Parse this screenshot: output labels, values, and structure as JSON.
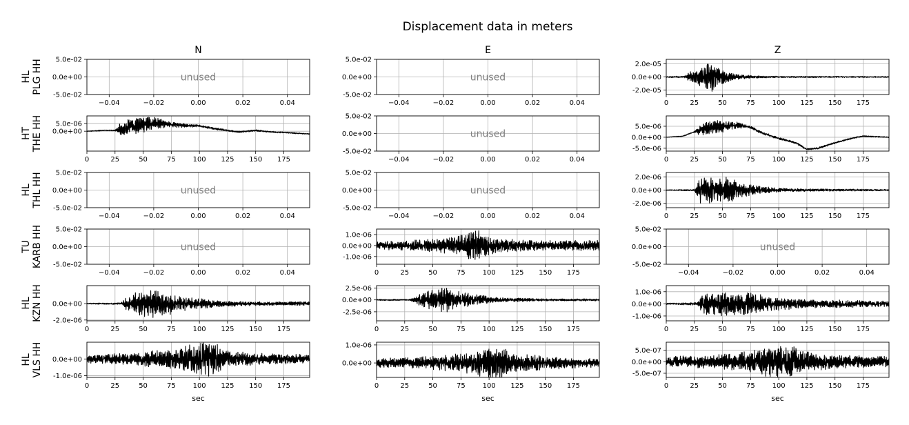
{
  "title": "Displacement data in meters",
  "columns": [
    "N",
    "E",
    "Z"
  ],
  "rows": [
    {
      "network": "HL",
      "station": "PLG HH"
    },
    {
      "network": "HT",
      "station": "THE HH"
    },
    {
      "network": "HL",
      "station": "THL HH"
    },
    {
      "network": "TU",
      "station": "KARB HH"
    },
    {
      "network": "HL",
      "station": "KZN HH"
    },
    {
      "network": "HL",
      "station": "VLS HH"
    }
  ],
  "unused_label": "unused",
  "xlabel": "sec",
  "colors": {
    "trace": "#000000",
    "grid": "#b0b0b0",
    "unused_text": "#808080"
  },
  "unused_axes": {
    "xticks": [
      -0.04,
      -0.02,
      0.0,
      0.02,
      0.04
    ],
    "xtick_labels": [
      "−0.04",
      "−0.02",
      "0.00",
      "0.02",
      "0.04"
    ],
    "yticks": [
      0.05,
      0.0,
      -0.05
    ],
    "ytick_labels": [
      "5.0e-02",
      "0.0e+00",
      "-5.0e-02"
    ],
    "xlim": [
      -0.05,
      0.05
    ],
    "ylim": [
      -0.05,
      0.05
    ]
  },
  "time_axis": {
    "xticks": [
      0,
      25,
      50,
      75,
      100,
      125,
      150,
      175
    ],
    "xtick_labels": [
      "0",
      "25",
      "50",
      "75",
      "100",
      "125",
      "150",
      "175"
    ],
    "xlim": [
      0,
      198
    ]
  },
  "chart_data": {
    "type": "line",
    "title": "Displacement data in meters",
    "xlabel": "sec",
    "grid": true,
    "panels": [
      {
        "row": 0,
        "col": "N",
        "unused": true
      },
      {
        "row": 0,
        "col": "E",
        "unused": true
      },
      {
        "row": 0,
        "col": "Z",
        "unused": false,
        "ylim": [
          -2.7e-05,
          2.7e-05
        ],
        "yticks": [
          2e-05,
          0,
          -2e-05
        ],
        "ytick_labels": [
          "2.0e-05",
          "0.0e+00",
          "-2.0e-05"
        ],
        "envelope": [
          [
            0,
            1e-06
          ],
          [
            15,
            1e-06
          ],
          [
            19,
            5e-06
          ],
          [
            25,
            9e-06
          ],
          [
            30,
            1.2e-05
          ],
          [
            35,
            1.4e-05
          ],
          [
            38,
            2.4e-05
          ],
          [
            42,
            1.6e-05
          ],
          [
            48,
            1e-05
          ],
          [
            55,
            6e-06
          ],
          [
            65,
            3e-06
          ],
          [
            80,
            1.5e-06
          ],
          [
            100,
            1e-06
          ],
          [
            198,
            7e-07
          ]
        ],
        "trend": [
          [
            0,
            0
          ],
          [
            198,
            0
          ]
        ]
      },
      {
        "row": 1,
        "col": "N",
        "unused": false,
        "ylim": [
          -1.3e-05,
          1e-05
        ],
        "yticks": [
          5e-06,
          0
        ],
        "ytick_labels": [
          "5.0e-06",
          "0.0e+00"
        ],
        "envelope": [
          [
            0,
            2e-07
          ],
          [
            25,
            3e-07
          ],
          [
            28,
            2.5e-06
          ],
          [
            32,
            5e-06
          ],
          [
            40,
            4e-06
          ],
          [
            50,
            4.5e-06
          ],
          [
            60,
            3.5e-06
          ],
          [
            75,
            1.5e-06
          ],
          [
            100,
            6e-07
          ],
          [
            198,
            3e-07
          ]
        ],
        "trend": [
          [
            0,
            0
          ],
          [
            15,
            5e-07
          ],
          [
            25,
            5e-07
          ],
          [
            35,
            2e-06
          ],
          [
            50,
            4.5e-06
          ],
          [
            65,
            5e-06
          ],
          [
            80,
            4e-06
          ],
          [
            100,
            3.5e-06
          ],
          [
            115,
            1.5e-06
          ],
          [
            125,
            5e-07
          ],
          [
            135,
            -5e-07
          ],
          [
            150,
            5e-07
          ],
          [
            165,
            -5e-07
          ],
          [
            180,
            -1e-06
          ],
          [
            190,
            -1.5e-06
          ],
          [
            198,
            -1.8e-06
          ]
        ]
      },
      {
        "row": 1,
        "col": "E",
        "unused": true
      },
      {
        "row": 1,
        "col": "Z",
        "unused": false,
        "ylim": [
          -6.3e-06,
          9.7e-06
        ],
        "yticks": [
          5e-06,
          0,
          -5e-06
        ],
        "ytick_labels": [
          "5.0e-06",
          "0.0e+00",
          "-5.0e-06"
        ],
        "envelope": [
          [
            0,
            1e-07
          ],
          [
            25,
            2e-07
          ],
          [
            28,
            2e-06
          ],
          [
            35,
            2.5e-06
          ],
          [
            50,
            2.5e-06
          ],
          [
            60,
            1.5e-06
          ],
          [
            75,
            5e-07
          ],
          [
            198,
            2e-07
          ]
        ],
        "trend": [
          [
            0,
            0
          ],
          [
            15,
            5e-07
          ],
          [
            25,
            2.5e-06
          ],
          [
            35,
            4e-06
          ],
          [
            50,
            5e-06
          ],
          [
            65,
            5.5e-06
          ],
          [
            75,
            4.5e-06
          ],
          [
            85,
            2e-06
          ],
          [
            100,
            -5e-07
          ],
          [
            115,
            -2.5e-06
          ],
          [
            125,
            -5.5e-06
          ],
          [
            135,
            -5e-06
          ],
          [
            150,
            -2.5e-06
          ],
          [
            165,
            -5e-07
          ],
          [
            175,
            5e-07
          ],
          [
            198,
            0
          ]
        ]
      },
      {
        "row": 2,
        "col": "N",
        "unused": true
      },
      {
        "row": 2,
        "col": "E",
        "unused": true
      },
      {
        "row": 2,
        "col": "Z",
        "unused": false,
        "ylim": [
          -2.7e-06,
          2.7e-06
        ],
        "yticks": [
          2e-06,
          0,
          -2e-06
        ],
        "ytick_labels": [
          "2.0e-06",
          "0.0e+00",
          "-2.0e-06"
        ],
        "envelope": [
          [
            0,
            6e-08
          ],
          [
            25,
            1e-07
          ],
          [
            30,
            1.7e-06
          ],
          [
            40,
            1.6e-06
          ],
          [
            50,
            1.8e-06
          ],
          [
            60,
            1.3e-06
          ],
          [
            75,
            7e-07
          ],
          [
            90,
            4e-07
          ],
          [
            110,
            2e-07
          ],
          [
            198,
            1e-07
          ]
        ],
        "trend": [
          [
            0,
            0
          ],
          [
            198,
            0
          ]
        ]
      },
      {
        "row": 3,
        "col": "N",
        "unused": true
      },
      {
        "row": 3,
        "col": "E",
        "unused": false,
        "ylim": [
          -1.7e-06,
          1.5e-06
        ],
        "yticks": [
          1e-06,
          0,
          -1e-06
        ],
        "ytick_labels": [
          "1.0e-06",
          "0.0e+00",
          "-1.0e-06"
        ],
        "envelope": [
          [
            0,
            3e-07
          ],
          [
            30,
            4e-07
          ],
          [
            50,
            5e-07
          ],
          [
            70,
            7e-07
          ],
          [
            80,
            9e-07
          ],
          [
            88,
            1.4e-06
          ],
          [
            95,
            8e-07
          ],
          [
            110,
            5e-07
          ],
          [
            150,
            4e-07
          ],
          [
            198,
            4e-07
          ]
        ],
        "trend": [
          [
            0,
            0
          ],
          [
            198,
            0
          ]
        ]
      },
      {
        "row": 3,
        "col": "Z",
        "unused": true
      },
      {
        "row": 4,
        "col": "N",
        "unused": false,
        "ylim": [
          -2.1e-06,
          2.2e-06
        ],
        "yticks": [
          0,
          -2e-06
        ],
        "ytick_labels": [
          "0.0e+00",
          "-2.0e-06"
        ],
        "envelope": [
          [
            0,
            5e-08
          ],
          [
            30,
            1e-07
          ],
          [
            35,
            7e-07
          ],
          [
            45,
            1.2e-06
          ],
          [
            60,
            1.5e-06
          ],
          [
            70,
            1.2e-06
          ],
          [
            85,
            8e-07
          ],
          [
            110,
            4e-07
          ],
          [
            150,
            2e-07
          ],
          [
            198,
            2e-07
          ]
        ],
        "trend": [
          [
            0,
            0
          ],
          [
            198,
            0
          ]
        ]
      },
      {
        "row": 4,
        "col": "E",
        "unused": false,
        "ylim": [
          -4.4e-06,
          3e-06
        ],
        "yticks": [
          2.5e-06,
          0,
          -2.5e-06
        ],
        "ytick_labels": [
          "2.5e-06",
          "0.0e+00",
          "-2.5e-06"
        ],
        "envelope": [
          [
            0,
            1e-07
          ],
          [
            30,
            1.5e-07
          ],
          [
            38,
            1.2e-06
          ],
          [
            50,
            1.8e-06
          ],
          [
            60,
            2.2e-06
          ],
          [
            70,
            1.6e-06
          ],
          [
            85,
            1e-06
          ],
          [
            110,
            4e-07
          ],
          [
            150,
            2e-07
          ],
          [
            198,
            2e-07
          ]
        ],
        "trend": [
          [
            0,
            0
          ],
          [
            198,
            0
          ]
        ]
      },
      {
        "row": 4,
        "col": "Z",
        "unused": false,
        "ylim": [
          -1.4e-06,
          1.5e-06
        ],
        "yticks": [
          1e-06,
          0,
          -1e-06
        ],
        "ytick_labels": [
          "1.0e-06",
          "0.0e+00",
          "-1.0e-06"
        ],
        "envelope": [
          [
            0,
            5e-08
          ],
          [
            28,
            1e-07
          ],
          [
            32,
            7e-07
          ],
          [
            45,
            8e-07
          ],
          [
            60,
            8e-07
          ],
          [
            75,
            8e-07
          ],
          [
            90,
            5e-07
          ],
          [
            120,
            3e-07
          ],
          [
            198,
            2e-07
          ]
        ],
        "trend": [
          [
            0,
            0
          ],
          [
            198,
            0
          ]
        ]
      },
      {
        "row": 5,
        "col": "N",
        "unused": false,
        "ylim": [
          -1.1e-06,
          1e-06
        ],
        "yticks": [
          0,
          -1e-06
        ],
        "ytick_labels": [
          "0.0e+00",
          "-1.0e-06"
        ],
        "envelope": [
          [
            0,
            2e-07
          ],
          [
            40,
            3e-07
          ],
          [
            60,
            4e-07
          ],
          [
            85,
            6e-07
          ],
          [
            100,
            9e-07
          ],
          [
            110,
            9e-07
          ],
          [
            125,
            4e-07
          ],
          [
            150,
            3e-07
          ],
          [
            198,
            2e-07
          ]
        ],
        "trend": [
          [
            0,
            0
          ],
          [
            198,
            0
          ]
        ]
      },
      {
        "row": 5,
        "col": "E",
        "unused": false,
        "ylim": [
          -8e-07,
          1.15e-06
        ],
        "yticks": [
          1e-06,
          0
        ],
        "ytick_labels": [
          "1.0e-06",
          "0.0e+00"
        ],
        "envelope": [
          [
            0,
            2e-07
          ],
          [
            40,
            3e-07
          ],
          [
            70,
            4e-07
          ],
          [
            90,
            6e-07
          ],
          [
            105,
            9e-07
          ],
          [
            120,
            5e-07
          ],
          [
            150,
            3e-07
          ],
          [
            198,
            2e-07
          ]
        ],
        "trend": [
          [
            0,
            0
          ],
          [
            198,
            0
          ]
        ]
      },
      {
        "row": 5,
        "col": "Z",
        "unused": false,
        "ylim": [
          -6.8e-07,
          8.5e-07
        ],
        "yticks": [
          5e-07,
          0,
          -5e-07
        ],
        "ytick_labels": [
          "5.0e-07",
          "0.0e+00",
          "-5.0e-07"
        ],
        "envelope": [
          [
            0,
            2e-07
          ],
          [
            40,
            2.5e-07
          ],
          [
            75,
            4e-07
          ],
          [
            100,
            6e-07
          ],
          [
            110,
            6e-07
          ],
          [
            125,
            3.5e-07
          ],
          [
            150,
            2.5e-07
          ],
          [
            198,
            2e-07
          ]
        ],
        "trend": [
          [
            0,
            0
          ],
          [
            198,
            0
          ]
        ]
      }
    ]
  }
}
